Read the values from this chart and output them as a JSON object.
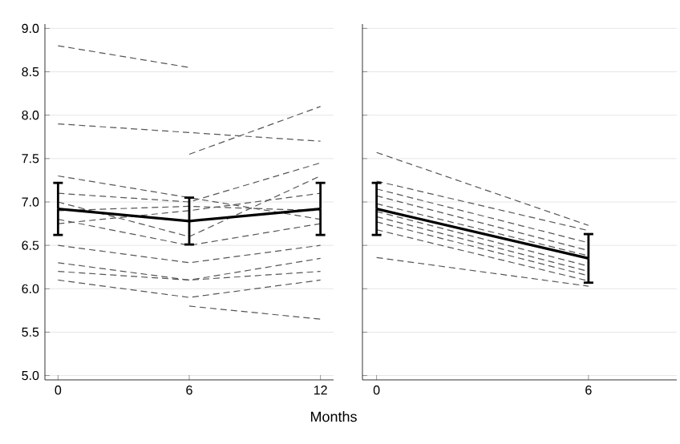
{
  "chart_data": [
    {
      "type": "line",
      "xlabel": "Months",
      "x": [
        0,
        6,
        12
      ],
      "xlim": [
        -0.6,
        12.6
      ],
      "xticks": [
        0,
        6,
        12
      ],
      "ylim": [
        4.95,
        9.05
      ],
      "yticks": [
        {
          "value": 5,
          "label": "5.0"
        },
        {
          "value": 5.5,
          "label": "5.5"
        },
        {
          "value": 6,
          "label": "6.0"
        },
        {
          "value": 6.5,
          "label": "6.5"
        },
        {
          "value": 7,
          "label": "7.0"
        },
        {
          "value": 7.5,
          "label": "7.5"
        },
        {
          "value": 8,
          "label": "8.0"
        },
        {
          "value": 8.5,
          "label": "8.5"
        },
        {
          "value": 9,
          "label": "9.0"
        }
      ],
      "grid": "y",
      "marker": "none",
      "series": [
        {
          "color": "#555555",
          "line_style": "dashed",
          "values": [
            8.8,
            8.55,
            null
          ]
        },
        {
          "color": "#555555",
          "line_style": "dashed",
          "values": [
            7.9,
            7.8,
            7.7
          ]
        },
        {
          "color": "#555555",
          "line_style": "dashed",
          "values": [
            null,
            7.55,
            8.1
          ]
        },
        {
          "color": "#555555",
          "line_style": "dashed",
          "values": [
            7.3,
            7.05,
            6.8
          ]
        },
        {
          "color": "#555555",
          "line_style": "dashed",
          "values": [
            7.1,
            7.0,
            7.45
          ]
        },
        {
          "color": "#555555",
          "line_style": "dashed",
          "values": [
            7.0,
            6.6,
            7.3
          ]
        },
        {
          "color": "#555555",
          "line_style": "dashed",
          "values": [
            6.9,
            6.95,
            6.9
          ]
        },
        {
          "color": "#555555",
          "line_style": "dashed",
          "values": [
            6.8,
            6.5,
            6.75
          ]
        },
        {
          "color": "#555555",
          "line_style": "dashed",
          "values": [
            6.75,
            6.9,
            7.1
          ]
        },
        {
          "color": "#555555",
          "line_style": "dashed",
          "values": [
            6.5,
            6.3,
            6.5
          ]
        },
        {
          "color": "#555555",
          "line_style": "dashed",
          "values": [
            6.3,
            6.1,
            6.2
          ]
        },
        {
          "color": "#555555",
          "line_style": "dashed",
          "values": [
            6.2,
            6.1,
            6.35
          ]
        },
        {
          "color": "#555555",
          "line_style": "dashed",
          "values": [
            6.1,
            5.9,
            6.1
          ]
        },
        {
          "color": "#555555",
          "line_style": "dashed",
          "values": [
            null,
            5.8,
            5.65
          ]
        },
        {
          "color": "#000000",
          "line_style": "solid",
          "values": [
            6.92,
            6.78,
            6.92
          ],
          "errors": [
            0.3,
            0.27,
            0.3
          ]
        }
      ]
    },
    {
      "type": "line",
      "x": [
        0,
        6
      ],
      "xlim": [
        -0.4,
        8.5
      ],
      "xticks": [
        0,
        6
      ],
      "ylim": [
        4.95,
        9.05
      ],
      "yticks": [
        {
          "value": 5,
          "label": null
        },
        {
          "value": 5.5,
          "label": null
        },
        {
          "value": 6,
          "label": null
        },
        {
          "value": 6.5,
          "label": null
        },
        {
          "value": 7,
          "label": null
        },
        {
          "value": 7.5,
          "label": null
        },
        {
          "value": 8,
          "label": null
        },
        {
          "value": 8.5,
          "label": null
        },
        {
          "value": 9,
          "label": null
        }
      ],
      "grid": "y",
      "marker": "none",
      "tick_labels": "x",
      "series": [
        {
          "color": "#555555",
          "line_style": "dashed",
          "values": [
            7.57,
            6.73
          ]
        },
        {
          "color": "#555555",
          "line_style": "dashed",
          "values": [
            7.24,
            6.67
          ]
        },
        {
          "color": "#555555",
          "line_style": "dashed",
          "values": [
            7.15,
            6.53
          ]
        },
        {
          "color": "#555555",
          "line_style": "dashed",
          "values": [
            7.07,
            6.44
          ]
        },
        {
          "color": "#555555",
          "line_style": "dashed",
          "values": [
            6.98,
            6.38
          ]
        },
        {
          "color": "#555555",
          "line_style": "dashed",
          "values": [
            6.89,
            6.26
          ]
        },
        {
          "color": "#555555",
          "line_style": "dashed",
          "values": [
            6.83,
            6.2
          ]
        },
        {
          "color": "#555555",
          "line_style": "dashed",
          "values": [
            6.77,
            6.15
          ]
        },
        {
          "color": "#555555",
          "line_style": "dashed",
          "values": [
            6.68,
            6.09
          ]
        },
        {
          "color": "#555555",
          "line_style": "dashed",
          "values": [
            6.36,
            6.03
          ]
        },
        {
          "color": "#000000",
          "line_style": "solid",
          "values": [
            6.92,
            6.35
          ],
          "errors": [
            0.3,
            0.28
          ]
        }
      ]
    }
  ]
}
